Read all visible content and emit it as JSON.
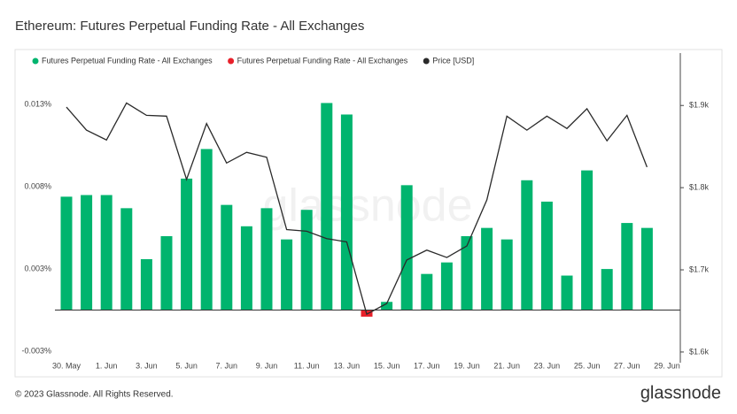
{
  "title": "Ethereum: Futures Perpetual Funding Rate - All Exchanges",
  "footer": {
    "copyright": "© 2023 Glassnode. All Rights Reserved.",
    "logo": "glassnode"
  },
  "chart_data": {
    "type": "bar",
    "watermark": "glassnode",
    "categories": [
      "30. May",
      null,
      "1. Jun",
      null,
      "3. Jun",
      null,
      "5. Jun",
      null,
      "7. Jun",
      null,
      "9. Jun",
      null,
      "11. Jun",
      null,
      "13. Jun",
      null,
      "15. Jun",
      null,
      "17. Jun",
      null,
      "19. Jun",
      null,
      "21. Jun",
      null,
      "23. Jun",
      null,
      "25. Jun",
      null,
      "27. Jun",
      null,
      "29. Jun"
    ],
    "series": [
      {
        "name": "Futures Perpetual Funding Rate - All Exchanges",
        "color": "#00b46e",
        "type": "bar",
        "values": [
          0.0069,
          0.007,
          0.007,
          0.0062,
          0.0031,
          0.0045,
          0.008,
          0.0098,
          0.0064,
          0.0051,
          0.0062,
          0.0043,
          0.0061,
          0.0126,
          0.0119,
          null,
          0.0005,
          0.0076,
          0.0022,
          0.0029,
          0.0045,
          0.005,
          0.0043,
          0.0079,
          0.0066,
          0.0021,
          0.0085,
          0.0025,
          0.0053,
          0.005,
          null
        ]
      },
      {
        "name": "Futures Perpetual Funding Rate - All Exchanges",
        "color": "#e8202a",
        "type": "bar",
        "values": [
          null,
          null,
          null,
          null,
          null,
          null,
          null,
          null,
          null,
          null,
          null,
          null,
          null,
          null,
          null,
          -0.0004,
          null,
          null,
          null,
          null,
          null,
          null,
          null,
          null,
          null,
          null,
          null,
          null,
          null,
          null,
          null
        ]
      },
      {
        "name": "Price [USD]",
        "color": "#2a2a2a",
        "type": "line",
        "axis": "y2",
        "values": [
          1898,
          1870,
          1858,
          1903,
          1888,
          1887,
          1810,
          1878,
          1830,
          1843,
          1837,
          1749,
          1747,
          1738,
          1734,
          1646,
          1659,
          1712,
          1724,
          1715,
          1729,
          1785,
          1887,
          1870,
          1887,
          1872,
          1896,
          1857,
          1888,
          1825,
          null
        ]
      }
    ],
    "ylim": [
      -0.0032,
      0.0151
    ],
    "yticks": [
      {
        "value": 0.0125,
        "label": "0.013%"
      },
      {
        "value": 0.0075,
        "label": "0.008%"
      },
      {
        "value": 0.0025,
        "label": "0.003%"
      },
      {
        "value": -0.0025,
        "label": "-0.003%"
      }
    ],
    "y2lim": [
      1587,
      1953
    ],
    "y2ticks": [
      {
        "value": 1900,
        "label": "$1.9k"
      },
      {
        "value": 1800,
        "label": "$1.8k"
      },
      {
        "value": 1700,
        "label": "$1.7k"
      },
      {
        "value": 1600,
        "label": "$1.6k"
      }
    ],
    "legend": "top-left"
  }
}
